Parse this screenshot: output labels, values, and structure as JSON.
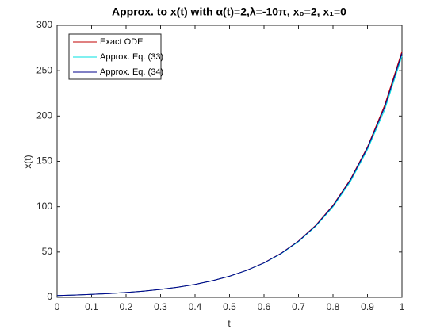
{
  "chart_data": {
    "type": "line",
    "title": "Approx. to x(t) with α(t)=2,λ=-10π, x₀=2, x₁=0",
    "x_label": "t",
    "y_label": "x(t)",
    "x": [
      0,
      0.05,
      0.1,
      0.15,
      0.2,
      0.25,
      0.3,
      0.35,
      0.4,
      0.45,
      0.5,
      0.55,
      0.6,
      0.65,
      0.7,
      0.75,
      0.8,
      0.85,
      0.9,
      0.95,
      1
    ],
    "series": [
      {
        "name": "Exact ODE",
        "color": "#c00000",
        "values": [
          2,
          2.56,
          3.27,
          4.18,
          5.34,
          6.83,
          8.72,
          11.15,
          14.26,
          18.22,
          23.3,
          29.8,
          38.1,
          48.7,
          62.2,
          79.5,
          101.6,
          129.9,
          166,
          212.2,
          271.3
        ]
      },
      {
        "name": "Approx. Eq. (33)",
        "color": "#00e0e0",
        "values": [
          2,
          2.56,
          3.27,
          4.18,
          5.34,
          6.83,
          8.72,
          11.15,
          14.26,
          18.22,
          23.3,
          29.7,
          37.9,
          48.3,
          61.5,
          78.4,
          99.8,
          127.3,
          163,
          207,
          266
        ]
      },
      {
        "name": "Approx. Eq. (34)",
        "color": "#00008b",
        "values": [
          2,
          2.56,
          3.27,
          4.18,
          5.34,
          6.83,
          8.72,
          11.15,
          14.26,
          18.22,
          23.3,
          29.8,
          38,
          48.6,
          62,
          79.1,
          101,
          129,
          165,
          210,
          269
        ]
      }
    ],
    "xlim": [
      0,
      1
    ],
    "ylim": [
      0,
      300
    ],
    "xticks": [
      0,
      0.1,
      0.2,
      0.3,
      0.4,
      0.5,
      0.6,
      0.7,
      0.8,
      0.9,
      1
    ],
    "yticks": [
      0,
      50,
      100,
      150,
      200,
      250,
      300
    ],
    "legend": "upper-left"
  }
}
